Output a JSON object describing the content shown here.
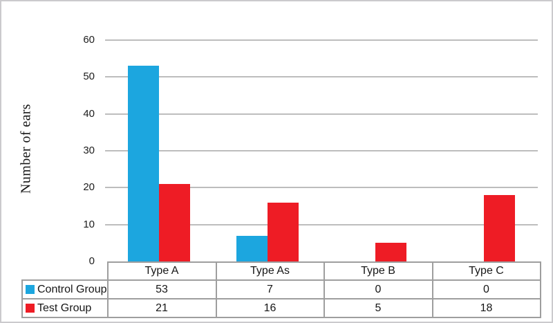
{
  "chart_data": {
    "type": "bar",
    "title": "",
    "ylabel": "Number of ears",
    "xlabel": "",
    "categories": [
      "Type A",
      "Type As",
      "Type B",
      "Type C"
    ],
    "series": [
      {
        "name": "Control Group",
        "color": "#1CA6DF",
        "values": [
          53,
          7,
          0,
          0
        ]
      },
      {
        "name": "Test Group",
        "color": "#EE1C25",
        "values": [
          21,
          16,
          5,
          18
        ]
      }
    ],
    "ylim": [
      0,
      60
    ],
    "yticks": [
      0,
      10,
      20,
      30,
      40,
      50,
      60
    ],
    "grid": true,
    "legend_position": "data-table-left",
    "data_table_shown": true
  },
  "colors": {
    "control_group": "#1CA6DF",
    "test_group": "#EE1C25",
    "gridline": "#bdbdbd",
    "table_border": "#9e9e9e",
    "figure_border": "#cbcacd",
    "text": "#161616"
  }
}
